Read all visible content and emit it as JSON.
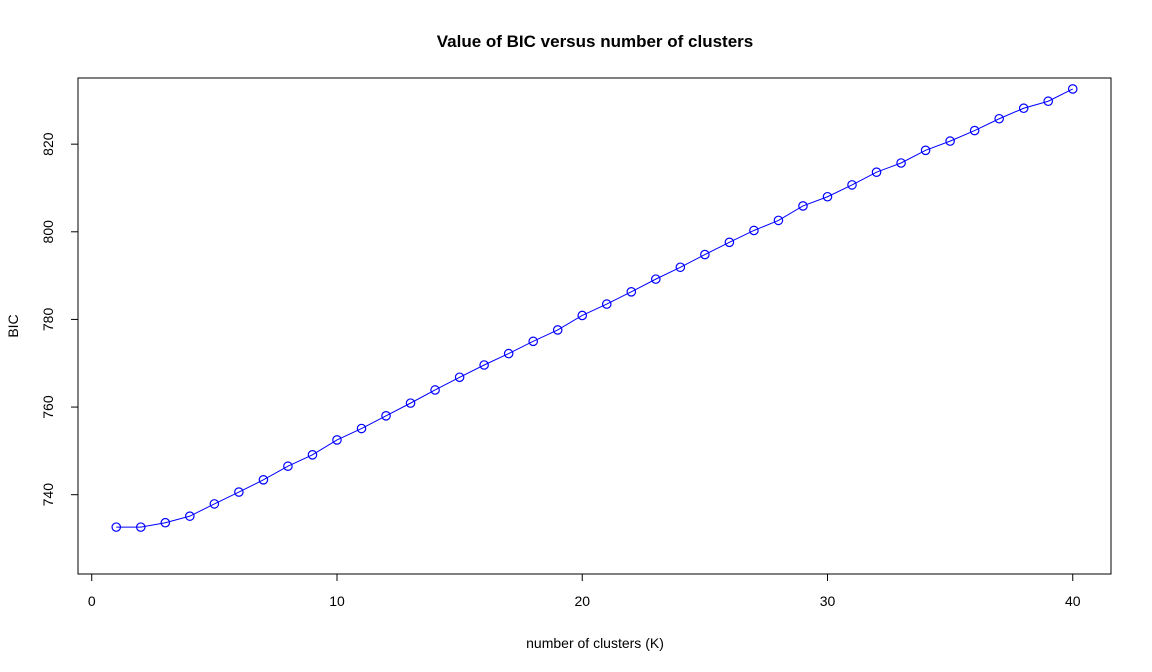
{
  "chart_data": {
    "type": "line",
    "title": "Value of BIC versus number of clusters",
    "xlabel": "number of clusters (K)",
    "ylabel": "BIC",
    "xlim": [
      -0.56,
      41.56
    ],
    "ylim": [
      721.9,
      835.1
    ],
    "x_ticks": [
      0,
      10,
      20,
      30,
      40
    ],
    "y_ticks": [
      740,
      760,
      780,
      800,
      820
    ],
    "grid": false,
    "legend": "none",
    "marker": "open-circle",
    "color": "#0000ff",
    "x": [
      1,
      2,
      3,
      4,
      5,
      6,
      7,
      8,
      9,
      10,
      11,
      12,
      13,
      14,
      15,
      16,
      17,
      18,
      19,
      20,
      21,
      22,
      23,
      24,
      25,
      26,
      27,
      28,
      29,
      30,
      31,
      32,
      33,
      34,
      35,
      36,
      37,
      38,
      39,
      40
    ],
    "values": [
      732.6,
      732.6,
      733.6,
      735.1,
      737.9,
      740.6,
      743.4,
      746.5,
      749.1,
      752.5,
      755.1,
      758.0,
      760.9,
      763.9,
      766.8,
      769.6,
      772.2,
      775.0,
      777.6,
      780.9,
      783.5,
      786.3,
      789.2,
      791.9,
      794.8,
      797.6,
      800.3,
      802.6,
      805.9,
      808.0,
      810.7,
      813.6,
      815.7,
      818.6,
      820.7,
      823.1,
      825.8,
      828.2,
      829.8,
      832.6
    ]
  }
}
